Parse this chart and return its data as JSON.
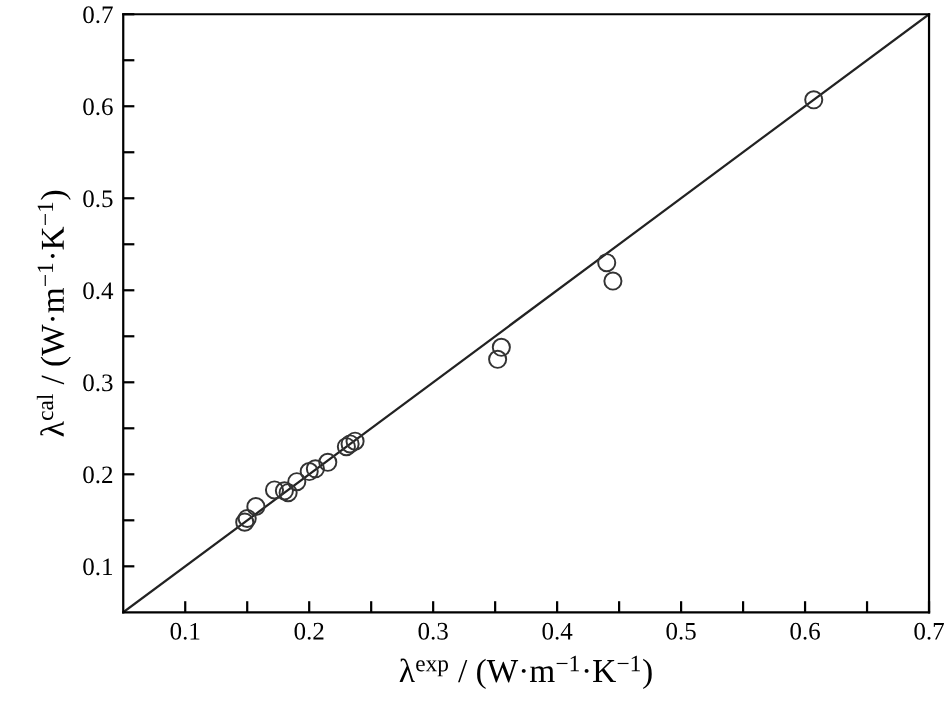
{
  "chart_data": {
    "type": "scatter",
    "xlabel": "λ$^{exp}$ / (W·m$^{−1}$·K$^{−1}$)",
    "ylabel": "λ$^{cal}$ / (W·m$^{−1}$·K$^{−1}$)",
    "xlim": [
      0.05,
      0.7
    ],
    "ylim": [
      0.05,
      0.7
    ],
    "xticks": [
      0.1,
      {
        "value": 0.15,
        "label": null
      },
      0.2,
      {
        "value": 0.25,
        "label": null
      },
      0.3,
      {
        "value": 0.35,
        "label": null
      },
      0.4,
      {
        "value": 0.45,
        "label": null
      },
      0.5,
      {
        "value": 0.55,
        "label": null
      },
      0.6,
      {
        "value": 0.65,
        "label": null
      },
      0.7
    ],
    "yticks": [
      0.1,
      {
        "value": 0.15,
        "label": null
      },
      0.2,
      {
        "value": 0.25,
        "label": null
      },
      0.3,
      {
        "value": 0.35,
        "label": null
      },
      0.4,
      {
        "value": 0.45,
        "label": null
      },
      0.5,
      {
        "value": 0.55,
        "label": null
      },
      0.6,
      {
        "value": 0.65,
        "label": null
      },
      0.7
    ],
    "grid": false,
    "legend": false,
    "series": [
      {
        "marker": "circle",
        "color": "#333333",
        "x": [
          0.148,
          0.15,
          0.157,
          0.172,
          0.18,
          0.183,
          0.19,
          0.2,
          0.205,
          0.215,
          0.23,
          0.233,
          0.237,
          0.352,
          0.355,
          0.44,
          0.445,
          0.607
        ],
        "values": [
          0.148,
          0.152,
          0.165,
          0.183,
          0.182,
          0.18,
          0.192,
          0.203,
          0.206,
          0.213,
          0.23,
          0.233,
          0.236,
          0.325,
          0.338,
          0.43,
          0.41,
          0.607
        ]
      },
      {
        "type": "line",
        "marker": "none",
        "color": "#222222",
        "x": [
          0.05,
          0.7
        ],
        "values": [
          0.05,
          0.7
        ]
      }
    ]
  }
}
